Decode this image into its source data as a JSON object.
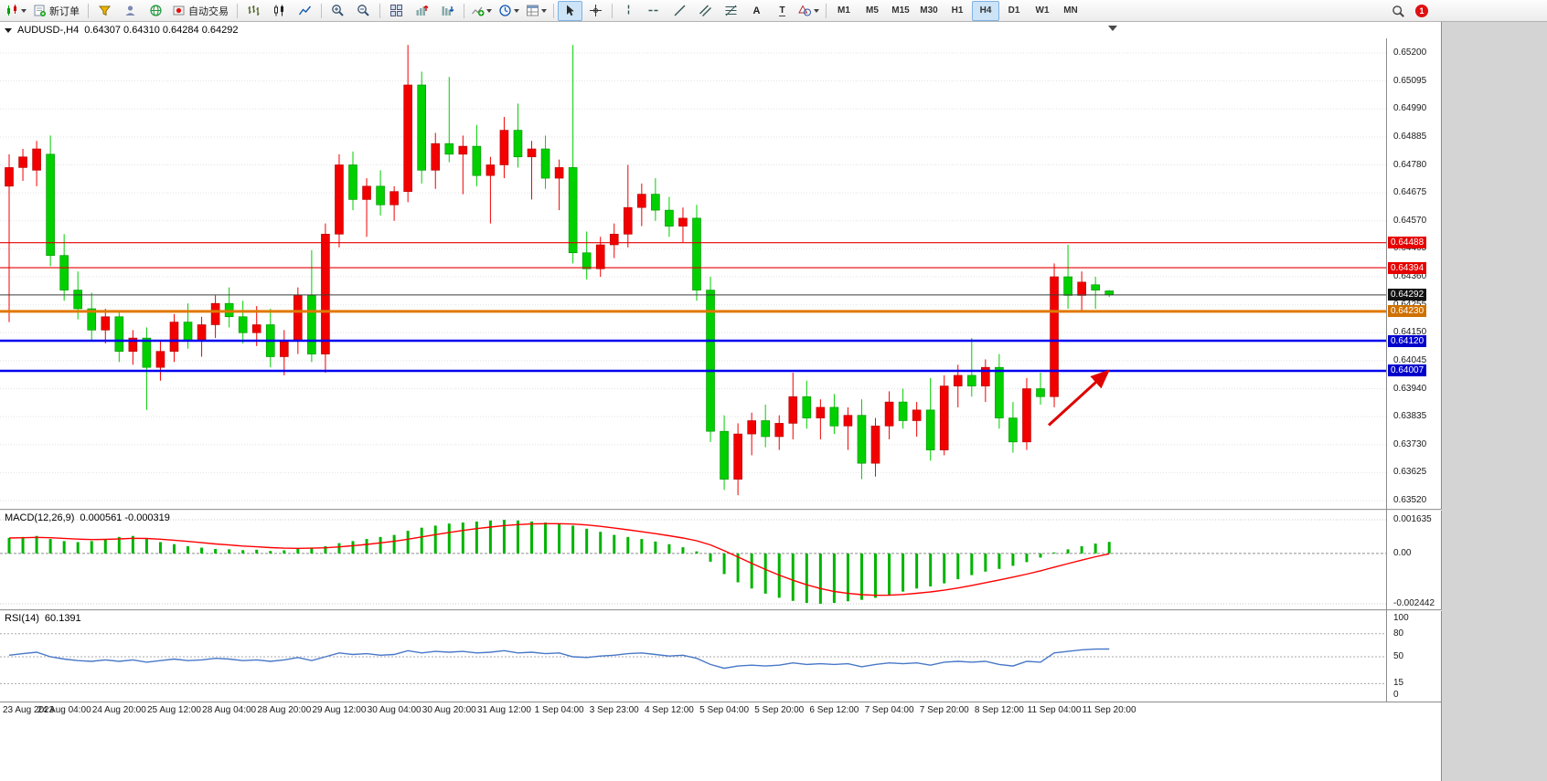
{
  "toolbar": {
    "new_order": "新订单",
    "autotrade": "自动交易",
    "text_tool": "A",
    "label_tool": "T",
    "timeframes": [
      "M1",
      "M5",
      "M15",
      "M30",
      "H1",
      "H4",
      "D1",
      "W1",
      "MN"
    ],
    "active_timeframe": "H4",
    "notification_badge": "1"
  },
  "chart_window": {
    "symbol_title": "AUDUSD-,H4",
    "ohlc_text": "0.64307 0.64310 0.64284 0.64292"
  },
  "chart_data": [
    {
      "type": "candlestick",
      "title": "AUDUSD- H4",
      "up_color": "#f20000",
      "down_color": "#00cf00",
      "y_axis": {
        "max": 0.652,
        "min": 0.6352,
        "step": 0.00105,
        "labels": [
          "0.65200",
          "0.65095",
          "0.64990",
          "0.64885",
          "0.64780",
          "0.64675",
          "0.64570",
          "0.64465",
          "0.64360",
          "0.64255",
          "0.64150",
          "0.64045",
          "0.63940",
          "0.63835",
          "0.63730",
          "0.63625",
          "0.63520"
        ]
      },
      "bars_per_label": 4,
      "time_labels": [
        "23 Aug 2023",
        "24 Aug 04:00",
        "24 Aug 20:00",
        "25 Aug 12:00",
        "28 Aug 04:00",
        "28 Aug 20:00",
        "29 Aug 12:00",
        "30 Aug 04:00",
        "30 Aug 20:00",
        "31 Aug 12:00",
        "1 Sep 04:00",
        "3 Sep 23:00",
        "4 Sep 12:00",
        "5 Sep 04:00",
        "5 Sep 20:00",
        "6 Sep 12:00",
        "7 Sep 04:00",
        "7 Sep 20:00",
        "8 Sep 12:00",
        "11 Sep 04:00",
        "11 Sep 20:00"
      ],
      "candles": [
        [
          0.647,
          0.6482,
          0.6419,
          0.6477
        ],
        [
          0.6477,
          0.6484,
          0.6472,
          0.6481
        ],
        [
          0.6476,
          0.6487,
          0.647,
          0.6484
        ],
        [
          0.6482,
          0.6489,
          0.644,
          0.6444
        ],
        [
          0.6444,
          0.6452,
          0.6427,
          0.6431
        ],
        [
          0.6431,
          0.6438,
          0.642,
          0.6424
        ],
        [
          0.6424,
          0.643,
          0.6412,
          0.6416
        ],
        [
          0.6416,
          0.6424,
          0.6411,
          0.6421
        ],
        [
          0.6421,
          0.6423,
          0.6404,
          0.6408
        ],
        [
          0.6408,
          0.6416,
          0.6403,
          0.6413
        ],
        [
          0.6413,
          0.6417,
          0.6386,
          0.6402
        ],
        [
          0.6402,
          0.6412,
          0.6397,
          0.6408
        ],
        [
          0.6408,
          0.6422,
          0.6404,
          0.6419
        ],
        [
          0.6419,
          0.6426,
          0.6409,
          0.6412
        ],
        [
          0.6412,
          0.6421,
          0.6406,
          0.6418
        ],
        [
          0.6418,
          0.6429,
          0.6413,
          0.6426
        ],
        [
          0.6426,
          0.6432,
          0.6417,
          0.6421
        ],
        [
          0.6421,
          0.6427,
          0.6411,
          0.6415
        ],
        [
          0.6415,
          0.6425,
          0.641,
          0.6418
        ],
        [
          0.6418,
          0.6424,
          0.6402,
          0.6406
        ],
        [
          0.6406,
          0.6416,
          0.6399,
          0.6412
        ],
        [
          0.6412,
          0.6432,
          0.6407,
          0.6429
        ],
        [
          0.6429,
          0.6446,
          0.6404,
          0.6407
        ],
        [
          0.6407,
          0.6456,
          0.64,
          0.6452
        ],
        [
          0.6452,
          0.6482,
          0.6447,
          0.6478
        ],
        [
          0.6478,
          0.6483,
          0.6461,
          0.6465
        ],
        [
          0.6465,
          0.6473,
          0.6451,
          0.647
        ],
        [
          0.647,
          0.6476,
          0.6459,
          0.6463
        ],
        [
          0.6463,
          0.647,
          0.6457,
          0.6468
        ],
        [
          0.6468,
          0.6523,
          0.6464,
          0.6508
        ],
        [
          0.6508,
          0.6513,
          0.6471,
          0.6476
        ],
        [
          0.6476,
          0.649,
          0.6469,
          0.6486
        ],
        [
          0.6486,
          0.6511,
          0.6479,
          0.6482
        ],
        [
          0.6482,
          0.6489,
          0.6467,
          0.6485
        ],
        [
          0.6485,
          0.6493,
          0.647,
          0.6474
        ],
        [
          0.6474,
          0.6481,
          0.6456,
          0.6478
        ],
        [
          0.6478,
          0.6496,
          0.6473,
          0.6491
        ],
        [
          0.6491,
          0.6501,
          0.6477,
          0.6481
        ],
        [
          0.6481,
          0.6487,
          0.6465,
          0.6484
        ],
        [
          0.6484,
          0.6489,
          0.6469,
          0.6473
        ],
        [
          0.6473,
          0.648,
          0.6461,
          0.6477
        ],
        [
          0.6477,
          0.6523,
          0.6441,
          0.6445
        ],
        [
          0.6445,
          0.6453,
          0.6435,
          0.6439
        ],
        [
          0.6439,
          0.6451,
          0.6436,
          0.6448
        ],
        [
          0.6448,
          0.6456,
          0.6443,
          0.6452
        ],
        [
          0.6452,
          0.6478,
          0.6447,
          0.6462
        ],
        [
          0.6462,
          0.6471,
          0.6455,
          0.6467
        ],
        [
          0.6467,
          0.6473,
          0.6457,
          0.6461
        ],
        [
          0.6461,
          0.6466,
          0.6451,
          0.6455
        ],
        [
          0.6455,
          0.6462,
          0.6449,
          0.6458
        ],
        [
          0.6458,
          0.6463,
          0.6427,
          0.6431
        ],
        [
          0.6431,
          0.6436,
          0.6374,
          0.6378
        ],
        [
          0.6378,
          0.6384,
          0.6356,
          0.636
        ],
        [
          0.636,
          0.6381,
          0.6354,
          0.6377
        ],
        [
          0.6377,
          0.6385,
          0.6369,
          0.6382
        ],
        [
          0.6382,
          0.6388,
          0.6372,
          0.6376
        ],
        [
          0.6376,
          0.6384,
          0.6371,
          0.6381
        ],
        [
          0.6381,
          0.64,
          0.6375,
          0.6391
        ],
        [
          0.6391,
          0.6397,
          0.6379,
          0.6383
        ],
        [
          0.6383,
          0.639,
          0.6375,
          0.6387
        ],
        [
          0.6387,
          0.6392,
          0.6377,
          0.638
        ],
        [
          0.638,
          0.6387,
          0.6371,
          0.6384
        ],
        [
          0.6384,
          0.639,
          0.636,
          0.6366
        ],
        [
          0.6366,
          0.6383,
          0.6361,
          0.638
        ],
        [
          0.638,
          0.6393,
          0.6375,
          0.6389
        ],
        [
          0.6389,
          0.6394,
          0.6379,
          0.6382
        ],
        [
          0.6382,
          0.6389,
          0.6376,
          0.6386
        ],
        [
          0.6386,
          0.6398,
          0.6367,
          0.6371
        ],
        [
          0.6371,
          0.6399,
          0.6369,
          0.6395
        ],
        [
          0.6395,
          0.6403,
          0.6387,
          0.6399
        ],
        [
          0.6399,
          0.6413,
          0.6391,
          0.6395
        ],
        [
          0.6395,
          0.6405,
          0.6389,
          0.6402
        ],
        [
          0.6402,
          0.6407,
          0.6379,
          0.6383
        ],
        [
          0.6383,
          0.6389,
          0.637,
          0.6374
        ],
        [
          0.6374,
          0.6398,
          0.6371,
          0.6394
        ],
        [
          0.6394,
          0.64,
          0.6388,
          0.6391
        ],
        [
          0.6391,
          0.6441,
          0.6387,
          0.6436
        ],
        [
          0.6436,
          0.6448,
          0.6424,
          0.6429
        ],
        [
          0.6429,
          0.6438,
          0.6423,
          0.6434
        ],
        [
          0.6433,
          0.6436,
          0.6424,
          0.6431
        ],
        [
          0.64307,
          0.6431,
          0.64284,
          0.64292
        ]
      ],
      "hlines": [
        {
          "price": 0.64488,
          "color": "#e60000",
          "width": 1.2,
          "label": "0.64488",
          "tag_color": "#e60000"
        },
        {
          "price": 0.64394,
          "color": "#e60000",
          "width": 1.2,
          "label": "0.64394",
          "tag_color": "#e60000"
        },
        {
          "price": 0.64292,
          "color": "#3c3c3c",
          "width": 1,
          "label": "0.64292",
          "tag_color": "#111111"
        },
        {
          "price": 0.6423,
          "color": "#e07800",
          "width": 3,
          "label": "0.64230",
          "tag_color": "#cf7000"
        },
        {
          "price": 0.6412,
          "color": "#0000ee",
          "width": 2.5,
          "label": "0.64120",
          "tag_color": "#0000cc"
        },
        {
          "price": 0.64007,
          "color": "#0000ee",
          "width": 2.5,
          "label": "0.64007",
          "tag_color": "#0000cc"
        }
      ],
      "arrow": {
        "from_bar": 75.6,
        "from_price": 0.63803,
        "to_bar": 79.9,
        "to_price": 0.64005,
        "color": "#e00000"
      }
    },
    {
      "type": "macd_histogram",
      "label": "MACD(12,26,9)",
      "values_text": "0.000561 -0.000319",
      "macd_value": 0.000561,
      "signal_value": -0.000319,
      "y_labels": [
        "0.001635",
        "0.00",
        "-0.002442"
      ],
      "y_label_values": [
        0.001635,
        0,
        -0.002442
      ],
      "y_max": 0.001635,
      "y_min": -0.002442,
      "hist_color": "#00b400",
      "signal_color": "#ff0000",
      "histogram": [
        0.00075,
        0.0008,
        0.00085,
        0.0007,
        0.0006,
        0.00055,
        0.0006,
        0.0007,
        0.0008,
        0.00085,
        0.0007,
        0.00055,
        0.00045,
        0.00035,
        0.00028,
        0.00022,
        0.0002,
        0.00016,
        0.00018,
        0.00012,
        0.00015,
        0.00022,
        0.00028,
        0.00035,
        0.0005,
        0.0006,
        0.0007,
        0.0008,
        0.0009,
        0.0011,
        0.00125,
        0.00135,
        0.00145,
        0.0015,
        0.00155,
        0.0016,
        0.00163,
        0.0016,
        0.00155,
        0.0015,
        0.00145,
        0.00135,
        0.0012,
        0.00105,
        0.0009,
        0.0008,
        0.0007,
        0.00058,
        0.00045,
        0.0003,
        0.0001,
        -0.0004,
        -0.001,
        -0.0014,
        -0.0017,
        -0.00195,
        -0.00215,
        -0.0023,
        -0.0024,
        -0.00244,
        -0.0024,
        -0.00232,
        -0.00225,
        -0.00215,
        -0.002,
        -0.00185,
        -0.0017,
        -0.0016,
        -0.00145,
        -0.00125,
        -0.00105,
        -0.00088,
        -0.00075,
        -0.0006,
        -0.00042,
        -0.0002,
        5e-05,
        0.0002,
        0.00035,
        0.00048,
        0.000561
      ]
    },
    {
      "type": "line",
      "label": "RSI(14)",
      "value_text": "60.1391",
      "value": 60.1391,
      "levels": [
        80,
        50,
        15
      ],
      "y_labels": [
        "100",
        "80",
        "50",
        "15",
        "0"
      ],
      "y_label_values": [
        100,
        80,
        50,
        15,
        0
      ],
      "y_max": 100,
      "y_min": 0,
      "line_color": "#4878c8",
      "values": [
        52,
        54,
        56,
        50,
        47,
        45,
        44,
        46,
        44,
        46,
        43,
        45,
        47,
        45,
        46,
        48,
        47,
        45,
        46,
        44,
        46,
        49,
        45,
        50,
        55,
        53,
        54,
        52,
        53,
        58,
        55,
        57,
        56,
        57,
        55,
        56,
        58,
        55,
        56,
        54,
        55,
        50,
        49,
        51,
        52,
        54,
        55,
        53,
        51,
        52,
        48,
        40,
        35,
        38,
        39,
        38,
        39,
        42,
        40,
        41,
        40,
        41,
        37,
        40,
        42,
        41,
        42,
        39,
        43,
        44,
        43,
        44,
        40,
        38,
        44,
        43,
        55,
        57,
        59,
        60,
        60.14
      ]
    }
  ]
}
